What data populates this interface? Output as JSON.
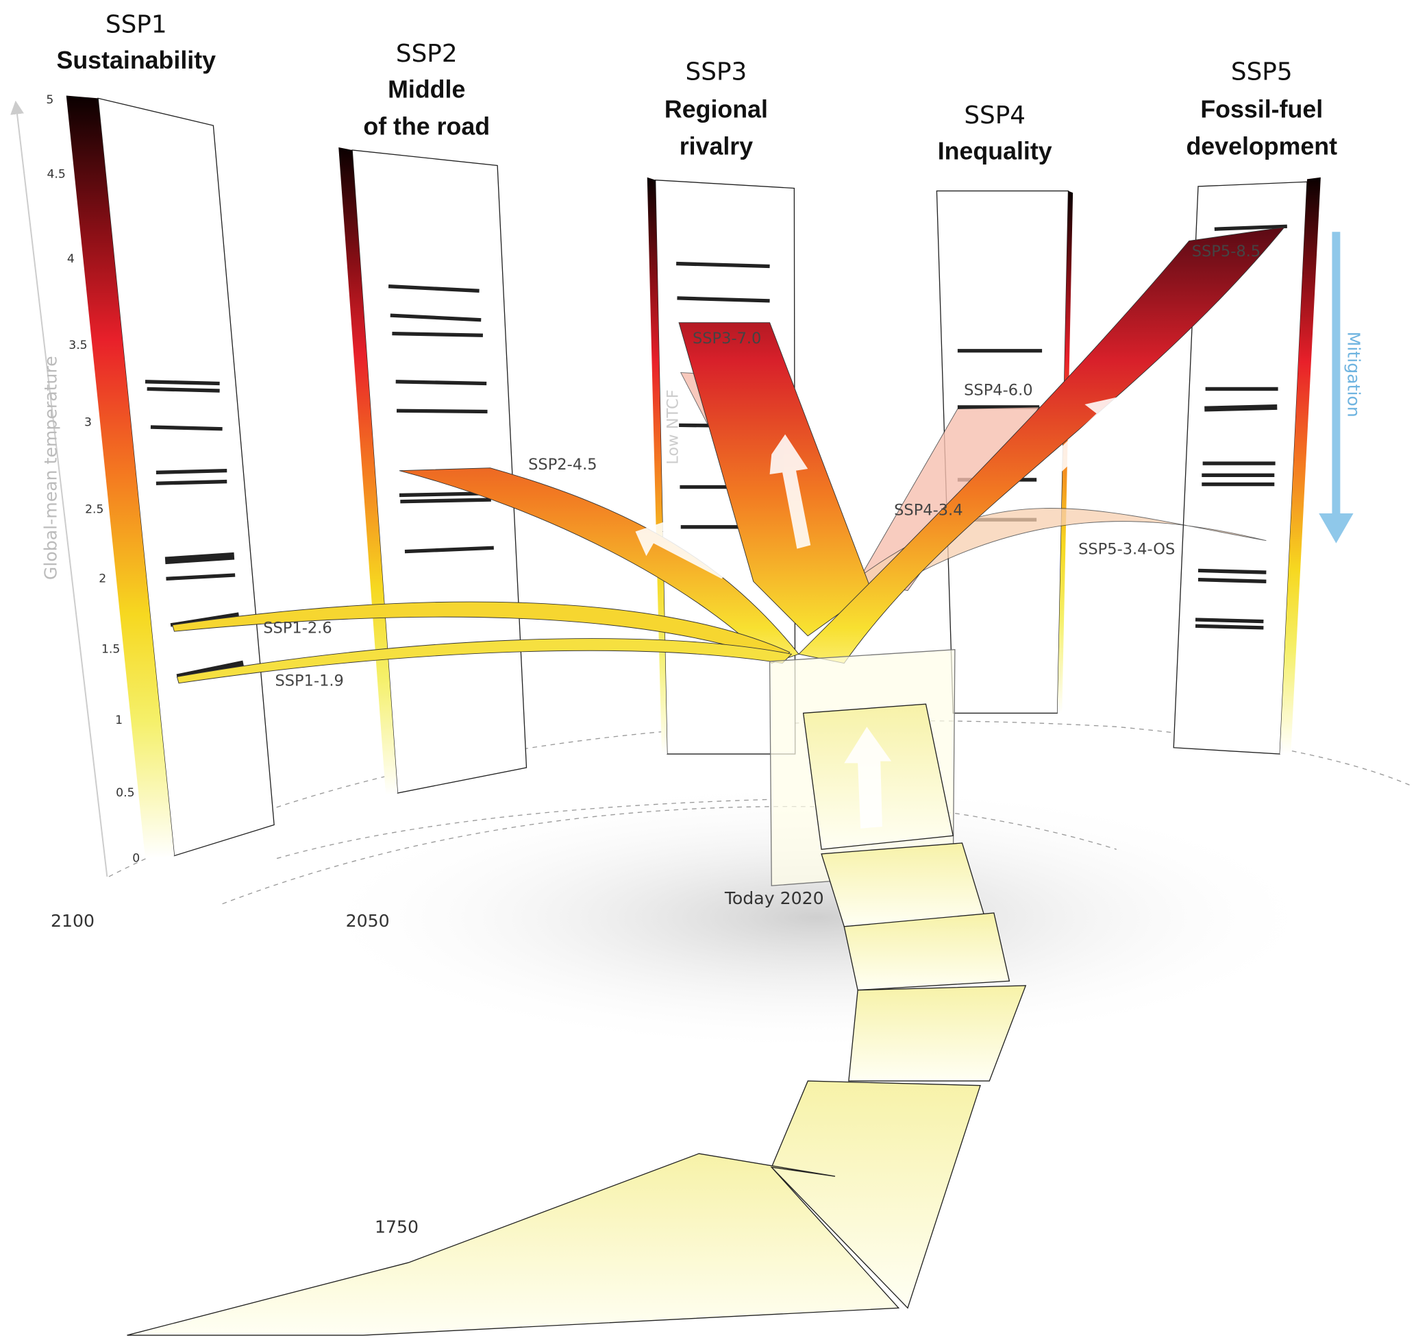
{
  "panels": [
    {
      "code": "SSP1",
      "name_lines": [
        "Sustainability"
      ]
    },
    {
      "code": "SSP2",
      "name_lines": [
        "Middle",
        "of the road"
      ]
    },
    {
      "code": "SSP3",
      "name_lines": [
        "Regional",
        "rivalry"
      ]
    },
    {
      "code": "SSP4",
      "name_lines": [
        "Inequality"
      ]
    },
    {
      "code": "SSP5",
      "name_lines": [
        "Fossil-fuel",
        "development"
      ]
    }
  ],
  "scenarios": [
    "SSP1-2.6",
    "SSP1-1.9",
    "SSP2-4.5",
    "SSP3-7.0",
    "SSP4-6.0",
    "SSP4-3.4",
    "SSP5-3.4-OS",
    "SSP5-8.5"
  ],
  "axis": {
    "label": "Global-mean temperature",
    "ticks": [
      "0",
      "0.5",
      "1",
      "1.5",
      "2",
      "2.5",
      "3",
      "3.5",
      "4",
      "4.5",
      "5"
    ]
  },
  "years": [
    "2100",
    "2050",
    "Today 2020",
    "1750"
  ],
  "mitigation": "Mitigation",
  "low_ntcf": "Low NTCF"
}
